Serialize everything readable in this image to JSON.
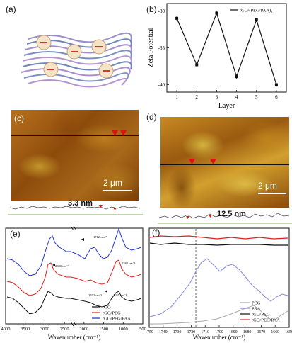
{
  "panel_a": {
    "label": "(a)"
  },
  "panel_b": {
    "label": "(b)",
    "chart_data": {
      "type": "line",
      "legend": "rGO/(PEG/PAA)₃",
      "legend_position": "top-right",
      "xlabel": "Layer",
      "ylabel": "Zeta Potential",
      "x": [
        1,
        2,
        3,
        4,
        5,
        6
      ],
      "y": [
        -31,
        -37.3,
        -30.3,
        -38.9,
        -31.2,
        -40
      ],
      "xlim": [
        0.5,
        6.5
      ],
      "ylim": [
        -41,
        -29
      ],
      "xticks": [
        "1",
        "2",
        "3",
        "4",
        "5",
        "6"
      ],
      "yticks": [
        "-30",
        "-35",
        "-40"
      ]
    }
  },
  "panel_c": {
    "label": "(c)",
    "scale": "2 μm",
    "height": "3.3 nm"
  },
  "panel_d": {
    "label": "(d)",
    "scale": "2 μm",
    "height": "12.5 nm"
  },
  "panel_e": {
    "label": "(e)",
    "chart_data": {
      "type": "line",
      "xlabel": "Wavenumber (cm⁻¹)",
      "ylabel": "",
      "xlim": [
        4000,
        500
      ],
      "xticks": [
        "4000",
        "3500",
        "3000",
        "2500",
        "2000",
        "1500",
        "1000",
        "500"
      ],
      "series": [
        {
          "name": "rGO",
          "color": "#111111"
        },
        {
          "name": "rGO/PEG",
          "color": "#e02020"
        },
        {
          "name": "rGO/PEG/PAA",
          "color": "#2233cc"
        }
      ],
      "annotations": [
        "1712 cm⁻¹",
        "2880 cm⁻¹",
        "1383 cm⁻¹",
        "1552 cm⁻¹",
        "1035 cm⁻¹"
      ],
      "legend_position": "bottom-right"
    }
  },
  "panel_f": {
    "label": "(f)",
    "chart_data": {
      "type": "line",
      "xlabel": "Wavenumber (cm⁻¹)",
      "ylabel": "",
      "xlim": [
        1750,
        1650
      ],
      "xticks": [
        "1750",
        "1740",
        "1730",
        "1720",
        "1710",
        "1700",
        "1690",
        "1680",
        "1670",
        "1660",
        "1650"
      ],
      "series": [
        {
          "name": "PEG",
          "color": "#aaaaaa"
        },
        {
          "name": "PAA",
          "color": "#8888dd"
        },
        {
          "name": "rGO/PEG",
          "color": "#111111"
        },
        {
          "name": "rGO/PEG/PAA",
          "color": "#e02020"
        }
      ],
      "reference_line_x": 1720,
      "legend_position": "bottom-right"
    }
  }
}
